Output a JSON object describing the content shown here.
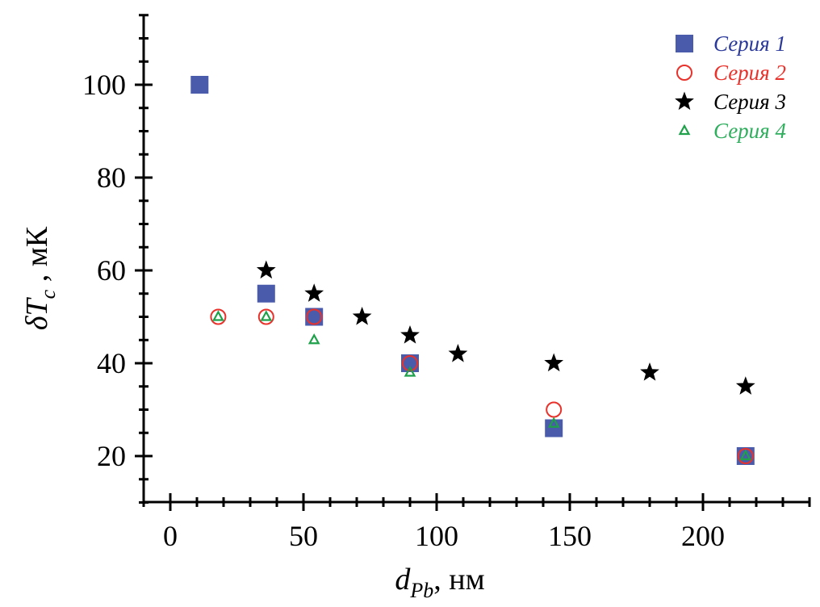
{
  "chart_data": {
    "type": "scatter",
    "xlabel": {
      "main": "d",
      "sub": "Pb",
      "suffix": ", нм"
    },
    "ylabel": {
      "main": "δT",
      "sub": "c",
      "suffix": " , мК"
    },
    "xlim": [
      -10,
      240
    ],
    "ylim": [
      10,
      115
    ],
    "xticks": [
      0,
      50,
      100,
      150,
      200
    ],
    "yticks": [
      20,
      40,
      60,
      80,
      100
    ],
    "x_minor_step": 10,
    "y_minor_step": 5,
    "grid": false,
    "legend_position": "top-right",
    "series": [
      {
        "name": "Серия 1",
        "marker": "square",
        "color": "#4a5bab",
        "label_color": "#2b3a9a",
        "points": [
          [
            11,
            100
          ],
          [
            36,
            55
          ],
          [
            54,
            50
          ],
          [
            90,
            40
          ],
          [
            144,
            26
          ],
          [
            216,
            20
          ]
        ]
      },
      {
        "name": "Серия 2",
        "marker": "circle",
        "color": "#e8322b",
        "label_color": "#e8322b",
        "points": [
          [
            18,
            50
          ],
          [
            36,
            50
          ],
          [
            54,
            50
          ],
          [
            90,
            40
          ],
          [
            144,
            30
          ],
          [
            216,
            20
          ]
        ]
      },
      {
        "name": "Серия 3",
        "marker": "star",
        "color": "#000000",
        "label_color": "#000000",
        "points": [
          [
            36,
            60
          ],
          [
            54,
            55
          ],
          [
            72,
            50
          ],
          [
            90,
            46
          ],
          [
            108,
            42
          ],
          [
            144,
            40
          ],
          [
            180,
            38
          ],
          [
            216,
            35
          ]
        ]
      },
      {
        "name": "Серия 4",
        "marker": "triangle",
        "color": "#1fa04a",
        "label_color": "#2fae5e",
        "points": [
          [
            18,
            50
          ],
          [
            36,
            50
          ],
          [
            54,
            45
          ],
          [
            90,
            38
          ],
          [
            144,
            27
          ],
          [
            216,
            20
          ]
        ]
      }
    ]
  }
}
